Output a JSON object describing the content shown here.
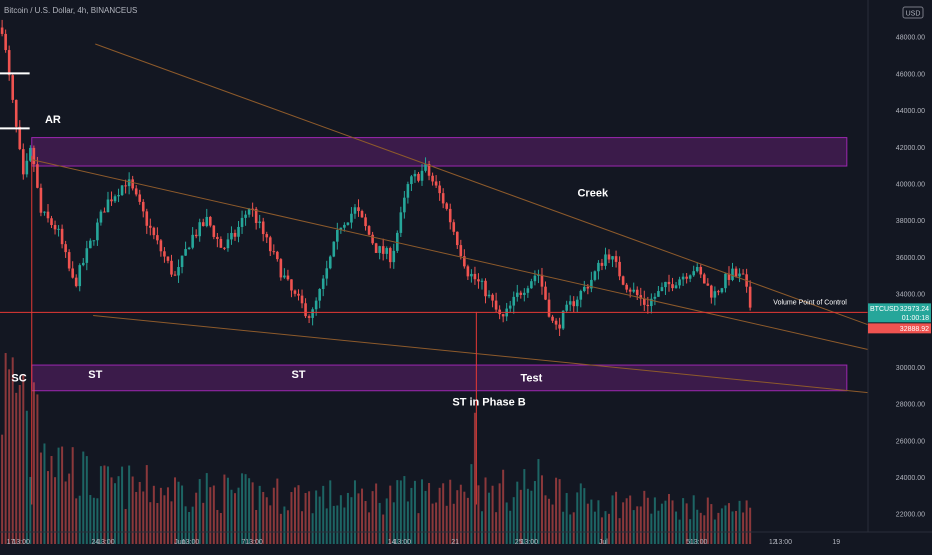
{
  "header": {
    "symbol_title": "Bitcoin / U.S. Dollar, 4h, BINANCEUS"
  },
  "currency_badge": "USD",
  "colors": {
    "background": "#131722",
    "up": "#26a69a",
    "down": "#ef5350",
    "zone_fill": "#5c1f6b",
    "zone_border": "#9c27b0",
    "poc_line": "#e53935",
    "trend_line": "#8d5a2b",
    "axis_text": "#b2b5be",
    "annotation": "#ffffff"
  },
  "chart_data": {
    "type": "candlestick",
    "ylim": [
      21000,
      50000
    ],
    "y_ticks": [
      22000,
      24000,
      26000,
      28000,
      30000,
      32000,
      34000,
      36000,
      38000,
      40000,
      42000,
      44000,
      46000,
      48000,
      50000
    ],
    "y_tick_labels": [
      "22000.00",
      "24000.00",
      "26000.00",
      "28000.00",
      "30000.00",
      "32000.00",
      "34000.00",
      "36000.00",
      "38000.00",
      "40000.00",
      "42000.00",
      "44000.00",
      "46000.00",
      "48000.00",
      "50000.00"
    ],
    "x_tick_labels": [
      "17",
      "13:00",
      "24",
      "13:00",
      "Jun",
      "13:00",
      "7",
      "13:00",
      "14",
      "13:00",
      "21",
      "25",
      "13:00",
      "Jul",
      "5",
      "13:00",
      "12",
      "13:00",
      "19"
    ],
    "x_tick_days": [
      0,
      0.5,
      4,
      4.5,
      8,
      8.5,
      11,
      11.5,
      18,
      18.5,
      21,
      24,
      24.5,
      28,
      32,
      32.5,
      36,
      36.5,
      39
    ],
    "x_range_days": [
      -0.5,
      40.5
    ],
    "price_anchors": [
      [
        -0.4,
        48500
      ],
      [
        0.2,
        43500
      ],
      [
        0.6,
        40200
      ],
      [
        1.0,
        42000
      ],
      [
        1.4,
        38400
      ],
      [
        2.2,
        37500
      ],
      [
        3.0,
        34400
      ],
      [
        4.5,
        38900
      ],
      [
        5.5,
        40200
      ],
      [
        6.8,
        37000
      ],
      [
        7.8,
        34800
      ],
      [
        8.5,
        37000
      ],
      [
        9.3,
        38000
      ],
      [
        10.0,
        36400
      ],
      [
        10.6,
        37200
      ],
      [
        11.3,
        38800
      ],
      [
        12.3,
        36300
      ],
      [
        13.3,
        34000
      ],
      [
        14.2,
        32700
      ],
      [
        14.8,
        34700
      ],
      [
        15.6,
        37800
      ],
      [
        16.3,
        38600
      ],
      [
        17.3,
        36400
      ],
      [
        18.0,
        36000
      ],
      [
        18.8,
        40000
      ],
      [
        19.6,
        40800
      ],
      [
        20.5,
        38900
      ],
      [
        21.6,
        35200
      ],
      [
        22.4,
        34200
      ],
      [
        23.2,
        32500
      ],
      [
        24.0,
        34000
      ],
      [
        24.9,
        35200
      ],
      [
        25.7,
        32000
      ],
      [
        26.4,
        33300
      ],
      [
        27.4,
        34700
      ],
      [
        28.2,
        36300
      ],
      [
        29.0,
        34600
      ],
      [
        30.0,
        33400
      ],
      [
        31.0,
        34400
      ],
      [
        32.3,
        35400
      ],
      [
        33.2,
        33900
      ],
      [
        34.0,
        35100
      ],
      [
        34.6,
        34800
      ],
      [
        35.0,
        33000
      ]
    ],
    "volume_anchors": [
      [
        -0.4,
        9000
      ],
      [
        1.0,
        9500
      ],
      [
        2.0,
        5000
      ],
      [
        4.0,
        3000
      ],
      [
        8.0,
        2700
      ],
      [
        12.0,
        2400
      ],
      [
        16.0,
        2200
      ],
      [
        20.0,
        2500
      ],
      [
        21.5,
        3300
      ],
      [
        22.5,
        2400
      ],
      [
        25.0,
        3200
      ],
      [
        27.0,
        2000
      ],
      [
        30.0,
        1800
      ],
      [
        33.0,
        1500
      ],
      [
        35.0,
        1500
      ]
    ],
    "volume_spikes": [
      [
        1.0,
        24000
      ],
      [
        1.3,
        28500
      ],
      [
        21.8,
        24700
      ],
      [
        22.0,
        27500
      ]
    ],
    "volume_base": 21000,
    "volume_scale": 1,
    "current_price": 32973.24,
    "current_price_label": "32973.24",
    "countdown_label": "01:00:18",
    "low_price_label": "32888.92",
    "price_tag_symbol": "BTCUSD",
    "volume_poc_price": 32973,
    "volume_poc_label": "Volume Point of Control",
    "zones": [
      {
        "name": "upper-resistance-zone",
        "x_start": 1.0,
        "x_end": 39.5,
        "y_top": 42500,
        "y_bottom": 40950
      },
      {
        "name": "lower-support-zone",
        "x_start": 1.0,
        "x_end": 39.5,
        "y_top": 30100,
        "y_bottom": 28700
      }
    ],
    "trend_lines": [
      {
        "name": "descending-resistance-line",
        "from": [
          4.0,
          47600
        ],
        "to": [
          40.5,
          32300
        ]
      },
      {
        "name": "channel-upper-line",
        "from": [
          1.0,
          41300
        ],
        "to": [
          40.5,
          30950
        ]
      },
      {
        "name": "channel-lower-line",
        "from": [
          3.9,
          32800
        ],
        "to": [
          40.5,
          28600
        ]
      }
    ],
    "markers": [
      {
        "name": "sc-vertical-line",
        "x_day": 1.0,
        "y_top": 41500,
        "y_bottom": 22500
      },
      {
        "name": "st-phase-b-vertical-line",
        "x_day": 22.0,
        "y_top": 33000,
        "y_bottom": 22500
      }
    ],
    "horizontal_ticks": [
      {
        "x_start": -0.5,
        "x_end": 0.9,
        "y": 46000
      },
      {
        "x_start": -0.5,
        "x_end": 0.9,
        "y": 43000
      }
    ],
    "annotations": [
      {
        "name": "ar-label",
        "text": "AR",
        "day": 2.0,
        "price": 43300
      },
      {
        "name": "creek-label",
        "text": "Creek",
        "day": 27.5,
        "price": 39300
      },
      {
        "name": "sc-label",
        "text": "SC",
        "day": 0.4,
        "price": 29200
      },
      {
        "name": "st-label-1",
        "text": "ST",
        "day": 4.0,
        "price": 29400
      },
      {
        "name": "st-label-2",
        "text": "ST",
        "day": 13.6,
        "price": 29400
      },
      {
        "name": "test-label",
        "text": "Test",
        "day": 24.6,
        "price": 29200
      },
      {
        "name": "st-phase-b-label",
        "text": "ST in Phase B",
        "day": 22.6,
        "price": 27900
      }
    ]
  }
}
